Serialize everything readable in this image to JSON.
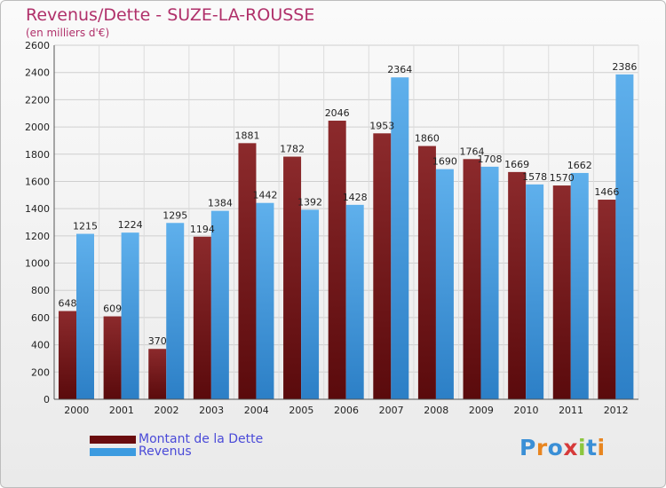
{
  "chart_data": {
    "type": "bar",
    "title": "Revenus/Dette - SUZE-LA-ROUSSE",
    "subtitle": "(en milliers d'€)",
    "xlabel": "",
    "ylabel": "",
    "ylim": [
      0,
      2600
    ],
    "yticks": [
      0,
      200,
      400,
      600,
      800,
      1000,
      1200,
      1400,
      1600,
      1800,
      2000,
      2200,
      2400,
      2600
    ],
    "grid": true,
    "legend_position": "bottom-left",
    "categories": [
      "2000",
      "2001",
      "2002",
      "2003",
      "2004",
      "2005",
      "2006",
      "2007",
      "2008",
      "2009",
      "2010",
      "2011",
      "2012"
    ],
    "series": [
      {
        "name": "Montant de la Dette",
        "color": "#7a1416",
        "values": [
          648,
          609,
          370,
          1194,
          1881,
          1782,
          2046,
          1953,
          1860,
          1764,
          1669,
          1570,
          1466
        ],
        "labels": [
          "648",
          "609",
          "370",
          "1194",
          "1881",
          "1782",
          "2046",
          "1953",
          "1860",
          "1764",
          "1669",
          "1570",
          "1466"
        ]
      },
      {
        "name": "Revenus",
        "color": "#3c9be0",
        "values": [
          1215,
          1224,
          1295,
          1384,
          1442,
          1392,
          1428,
          2364,
          1690,
          1708,
          1578,
          1662,
          2386
        ],
        "labels": [
          "1215",
          "1224",
          "1295",
          "1384",
          "1442",
          "1392",
          "1428",
          "2364",
          "1690",
          "1708",
          "1578",
          "1662",
          "2386"
        ]
      }
    ]
  },
  "watermark": {
    "text": "Proxiti",
    "letter_colors": [
      "#3a8fd6",
      "#e8851f",
      "#3a8fd6",
      "#d63a3a",
      "#8cc63e",
      "#3a8fd6",
      "#e8851f"
    ]
  }
}
